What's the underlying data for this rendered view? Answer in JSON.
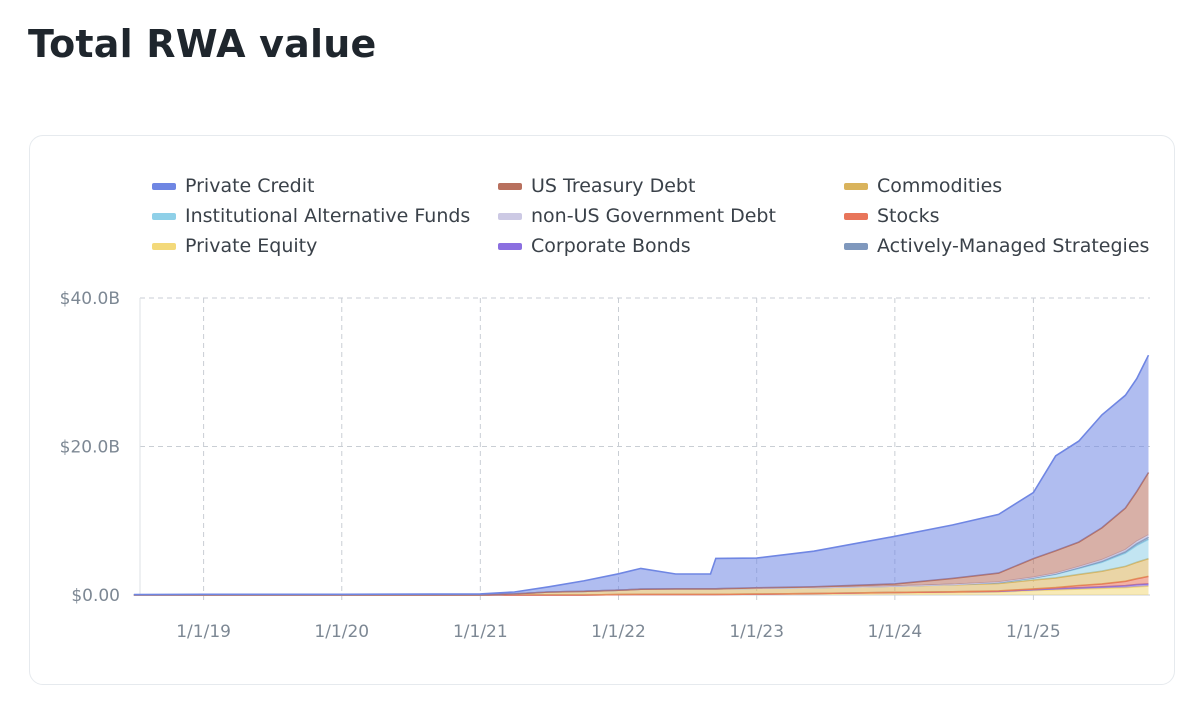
{
  "page": {
    "title": "Total RWA value"
  },
  "chart_data": {
    "type": "area",
    "stacked": true,
    "title": "",
    "xlabel": "",
    "ylabel": "",
    "x_ticks": [
      "1/1/19",
      "1/1/20",
      "1/1/21",
      "1/1/22",
      "1/1/23",
      "1/1/24",
      "1/1/25"
    ],
    "y_ticks": [
      "$0.00",
      "$20.0B",
      "$40.0B"
    ],
    "ylim": [
      0,
      40
    ],
    "y_unit": "B USD",
    "grid": true,
    "legend_position": "top",
    "x": [
      "2018-07-01",
      "2019-01-01",
      "2020-01-01",
      "2021-01-01",
      "2021-04-01",
      "2021-07-01",
      "2021-10-01",
      "2022-01-01",
      "2022-03-01",
      "2022-06-01",
      "2022-09-01",
      "2022-09-15",
      "2023-01-01",
      "2023-06-01",
      "2024-01-01",
      "2024-06-01",
      "2024-10-01",
      "2025-01-01",
      "2025-03-01",
      "2025-05-01",
      "2025-07-01",
      "2025-09-01",
      "2025-10-01",
      "2025-11-01"
    ],
    "series": [
      {
        "name": "Private Equity",
        "color": "#f3d97a",
        "values": [
          0,
          0,
          0,
          0,
          0,
          0,
          0,
          0.05,
          0.08,
          0.08,
          0.08,
          0.08,
          0.12,
          0.2,
          0.3,
          0.35,
          0.4,
          0.6,
          0.7,
          0.8,
          0.9,
          1.0,
          1.1,
          1.2
        ]
      },
      {
        "name": "Corporate Bonds",
        "color": "#8b6fe0",
        "values": [
          0,
          0,
          0,
          0,
          0,
          0,
          0,
          0,
          0,
          0,
          0,
          0,
          0,
          0,
          0.05,
          0.08,
          0.1,
          0.12,
          0.15,
          0.18,
          0.2,
          0.25,
          0.3,
          0.3
        ]
      },
      {
        "name": "Stocks",
        "color": "#e8755a",
        "values": [
          0,
          0,
          0,
          0,
          0,
          0,
          0,
          0,
          0,
          0,
          0,
          0,
          0,
          0,
          0,
          0,
          0.05,
          0.1,
          0.15,
          0.3,
          0.4,
          0.6,
          0.8,
          1.0
        ]
      },
      {
        "name": "Commodities",
        "color": "#d9b35c",
        "values": [
          0,
          0,
          0,
          0,
          0.15,
          0.4,
          0.5,
          0.6,
          0.7,
          0.75,
          0.75,
          0.75,
          0.8,
          0.8,
          0.85,
          0.95,
          1.0,
          1.2,
          1.3,
          1.5,
          1.7,
          2.0,
          2.2,
          2.4
        ]
      },
      {
        "name": "Institutional Alternative Funds",
        "color": "#8fd0e8",
        "values": [
          0,
          0,
          0,
          0,
          0,
          0,
          0,
          0,
          0,
          0,
          0,
          0,
          0,
          0,
          0,
          0.05,
          0.15,
          0.3,
          0.5,
          0.8,
          1.2,
          1.8,
          2.3,
          2.6
        ]
      },
      {
        "name": "Actively-Managed Strategies",
        "color": "#7f98bd",
        "values": [
          0,
          0,
          0,
          0,
          0,
          0,
          0,
          0,
          0,
          0,
          0,
          0,
          0,
          0,
          0,
          0,
          0,
          0,
          0.05,
          0.1,
          0.15,
          0.2,
          0.25,
          0.3
        ]
      },
      {
        "name": "non-US Government Debt",
        "color": "#ccc9e4",
        "values": [
          0,
          0,
          0,
          0,
          0,
          0,
          0,
          0,
          0,
          0,
          0,
          0,
          0,
          0,
          0,
          0,
          0.05,
          0.08,
          0.1,
          0.15,
          0.2,
          0.25,
          0.3,
          0.3
        ]
      },
      {
        "name": "US Treasury Debt",
        "color": "#b8705e",
        "values": [
          0,
          0,
          0,
          0,
          0,
          0,
          0,
          0,
          0,
          0,
          0,
          0,
          0.05,
          0.1,
          0.3,
          0.8,
          1.2,
          2.5,
          3.0,
          3.3,
          4.3,
          5.6,
          6.7,
          8.4
        ]
      },
      {
        "name": "Private Credit",
        "color": "#6f86e3",
        "values": [
          0.05,
          0.1,
          0.1,
          0.15,
          0.25,
          0.7,
          1.4,
          2.2,
          2.8,
          2.0,
          2.0,
          4.1,
          4.0,
          4.8,
          6.4,
          7.2,
          7.9,
          8.9,
          12.8,
          13.6,
          15.2,
          15.2,
          15.2,
          15.8
        ]
      }
    ]
  },
  "legend": [
    {
      "label": "Private Credit",
      "color": "#6f86e3"
    },
    {
      "label": "US Treasury Debt",
      "color": "#b8705e"
    },
    {
      "label": "Commodities",
      "color": "#d9b35c"
    },
    {
      "label": "Institutional Alternative Funds",
      "color": "#8fd0e8"
    },
    {
      "label": "non-US Government Debt",
      "color": "#ccc9e4"
    },
    {
      "label": "Stocks",
      "color": "#e8755a"
    },
    {
      "label": "Private Equity",
      "color": "#f3d97a"
    },
    {
      "label": "Corporate Bonds",
      "color": "#8b6fe0"
    },
    {
      "label": "Actively-Managed Strategies",
      "color": "#7f98bd"
    }
  ]
}
